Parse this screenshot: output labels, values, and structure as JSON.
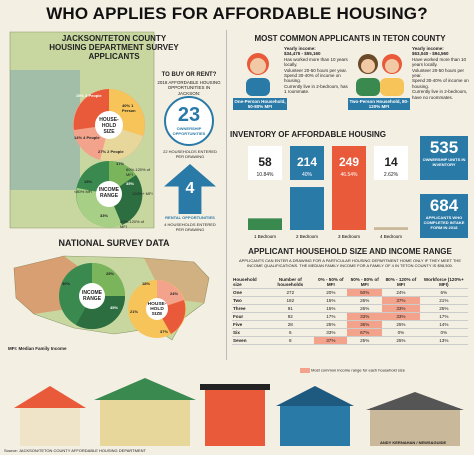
{
  "title": "WHO APPLIES FOR AFFORDABLE HOUSING?",
  "jackson": {
    "header": "JACKSON/TETON COUNTY HOUSING DEPARTMENT SURVEY APPLICANTS",
    "to_buy_rent": "TO BUY OR RENT?",
    "opps_line": "2018 AFFORDABLE HOUSING OPPORTUNITIES IN JACKSON:",
    "ownership_num": "23",
    "ownership_label": "OWNERSHIP OPPORTUNITIES",
    "ownership_sub": "22 HOUSEHOLDS ENTERED PER DRAWING",
    "rental_num": "4",
    "rental_label": "RENTAL OPPORTUNITIES",
    "rental_sub": "4 HOUSEHOLDS ENTERED PER DRAWING",
    "household_label": "HOUSE-HOLD SIZE",
    "household_slices": [
      "19% 3 People",
      "14% 4 People",
      "27% 2 People",
      "40% 1 Person"
    ],
    "income_label": "INCOME RANGE",
    "income_slices": [
      "17%",
      "15%",
      "35%",
      "33%"
    ],
    "income_notes": [
      "80%-120% of MFI",
      "<80% MFI",
      "120%+ MFI",
      "80%-120% of MFI"
    ]
  },
  "national": {
    "header": "NATIONAL SURVEY DATA",
    "income_label": "INCOME RANGE",
    "income_slices": [
      "30%",
      "25%",
      "45%",
      "45%"
    ],
    "household_label": "HOUSE-HOLD SIZE",
    "household_slices": [
      "18%",
      "24%",
      "21%",
      "37%"
    ],
    "mfi_note": "MFI: Median Family Income"
  },
  "applicants": {
    "header": "MOST COMMON APPLICANTS IN TETON COUNTY",
    "one_person": {
      "caption": "One-Person Household, 50-80% MFI",
      "income_label": "Yearly income:",
      "income": "$34,475 - $55,160",
      "bullets": [
        "Has worked more than 10 years locally.",
        "Volunteer 20-50 hours per year.",
        "Spend 30-40% of income on housing.",
        "Currently live in 2-bedroom, has 1 roommate."
      ]
    },
    "two_person": {
      "caption": "Two-Person Household, 80-120% MFI",
      "income_label": "Yearly income:",
      "income": "$63,040 - $94,560",
      "bullets": [
        "Have worked more than 10 years locally.",
        "Volunteer 20-50 hours per year.",
        "Spend 30-40% of income on housing.",
        "Currently live in 2-bedroom, have no roommates."
      ]
    }
  },
  "inventory": {
    "header": "INVENTORY OF AFFORDABLE HOUSING",
    "bars": [
      {
        "count": "58",
        "pct": "10.84%",
        "label": "1 Bedroom",
        "color": "#3a8a50"
      },
      {
        "count": "214",
        "pct": "40%",
        "label": "2 Bedroom",
        "color": "#2a7aa8"
      },
      {
        "count": "249",
        "pct": "46.54%",
        "label": "3 Bedroom",
        "color": "#e85a3a"
      },
      {
        "count": "14",
        "pct": "2.62%",
        "label": "4 Bedroom",
        "color": "#c9b89a"
      }
    ],
    "ownership_num": "535",
    "ownership_label": "OWNERSHIP UNITS IN INVENTORY",
    "intake_num": "684",
    "intake_label": "APPLICANTS WHO COMPLETED INTAKE FORM IN 2018"
  },
  "household_table": {
    "header": "APPLICANT HOUSEHOLD SIZE AND INCOME RANGE",
    "intro": "APPLICANTS CAN ENTER A DRAWING FOR A PARTICULAR HOUSING DEPARTMENT HOME ONLY IF THEY MEET THE INCOME QUALIFICATIONS. THE MEDIAN FAMILY INCOME FOR A FAMILY OF 4 IN TETON COUNTY IS $98,500.",
    "columns": [
      "Household size",
      "Number of households",
      "0% - 50% of MFI",
      "50% - 80% of MFI",
      "80% - 120% of MFI",
      "Workforce (120%+ MFI)"
    ],
    "rows": [
      [
        "One",
        "272",
        "20%",
        "50%",
        "24%",
        "6%"
      ],
      [
        "Two",
        "182",
        "15%",
        "26%",
        "37%",
        "21%"
      ],
      [
        "Three",
        "91",
        "15%",
        "26%",
        "33%",
        "25%"
      ],
      [
        "Four",
        "92",
        "17%",
        "33%",
        "33%",
        "17%"
      ],
      [
        "Five",
        "28",
        "25%",
        "36%",
        "25%",
        "14%"
      ],
      [
        "Six",
        "6",
        "33%",
        "67%",
        "0%",
        "0%"
      ],
      [
        "Seven",
        "8",
        "37%",
        "25%",
        "25%",
        "13%"
      ]
    ],
    "highlight": [
      [
        3
      ],
      [
        4
      ],
      [
        4
      ],
      [
        3,
        4
      ],
      [
        3
      ],
      [
        3
      ],
      [
        2
      ]
    ],
    "legend": "Most common income range for each household size"
  },
  "footer": {
    "source": "Source: JACKSON/TETON COUNTY AFFORDABLE HOUSING DEPARTMENT",
    "credit": "ANDY KERNAHAN / NEWS&GUIDE"
  }
}
